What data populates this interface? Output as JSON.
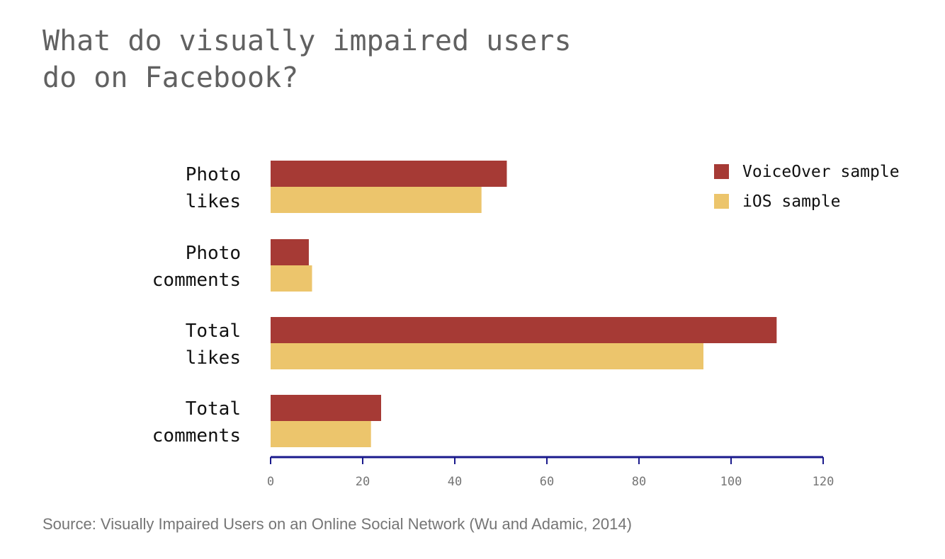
{
  "title_lines": [
    "What do visually impaired users",
    "do on Facebook?"
  ],
  "source": "Source: Visually Impaired Users on an Online Social Network (Wu and Adamic, 2014)",
  "colors": {
    "voiceover": "#a63a35",
    "ios": "#ecc56c",
    "axis": "#1a1a8c",
    "tick_text": "#757575",
    "label_text": "#111111"
  },
  "chart_data": {
    "type": "bar",
    "orientation": "horizontal",
    "categories": [
      [
        "Photo",
        "likes"
      ],
      [
        "Photo",
        "comments"
      ],
      [
        "Total",
        "likes"
      ],
      [
        "Total",
        "comments"
      ]
    ],
    "series": [
      {
        "name": "VoiceOver sample",
        "color": "#a63a35",
        "values": [
          51.3,
          8.3,
          109.9,
          24.0
        ]
      },
      {
        "name": "iOS sample",
        "color": "#ecc56c",
        "values": [
          45.8,
          9.0,
          94.0,
          21.8
        ]
      }
    ],
    "x_ticks": [
      "0",
      "20",
      "40",
      "60",
      "80",
      "100",
      "120"
    ],
    "xlim": [
      0,
      120
    ],
    "grid": false,
    "legend_position": "top-right"
  }
}
